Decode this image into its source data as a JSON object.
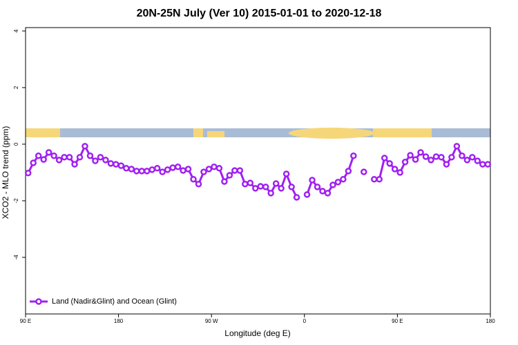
{
  "chart_data": {
    "type": "line",
    "title": "20N-25N July (Ver 10)   2015-01-01 to 2020-12-18",
    "xlabel": "Longitude (deg E)",
    "ylabel": "XCO2 - MLO trend (ppm)",
    "xlim": [
      90,
      540
    ],
    "xticks": [
      {
        "value": 90,
        "label": "90 E"
      },
      {
        "value": 180,
        "label": "180"
      },
      {
        "value": 270,
        "label": "90 W"
      },
      {
        "value": 360,
        "label": "0"
      },
      {
        "value": 450,
        "label": "90 E"
      },
      {
        "value": 540,
        "label": "180"
      }
    ],
    "ylim": [
      -6,
      4.12
    ],
    "yticks": [
      -4,
      -2,
      0,
      2,
      4
    ],
    "legend": "bottom-left",
    "x": [
      92.5,
      97.5,
      102.5,
      107.5,
      112.5,
      117.5,
      122.5,
      127.5,
      132.5,
      137.5,
      142.5,
      147.5,
      152.5,
      157.5,
      162.5,
      167.5,
      172.5,
      177.5,
      182.5,
      187.5,
      192.5,
      197.5,
      202.5,
      207.5,
      212.5,
      217.5,
      222.5,
      227.5,
      232.5,
      237.5,
      242.5,
      247.5,
      252.5,
      257.5,
      262.5,
      267.5,
      272.5,
      277.5,
      282.5,
      287.5,
      292.5,
      297.5,
      302.5,
      307.5,
      312.5,
      317.5,
      322.5,
      327.5,
      332.5,
      337.5,
      342.5,
      347.5,
      352.5,
      357.5,
      362.5,
      367.5,
      372.5,
      377.5,
      382.5,
      387.5,
      392.5,
      397.5,
      402.5,
      407.5,
      412.5,
      417.5,
      422.5,
      427.5,
      432.5,
      437.5,
      442.5,
      447.5,
      452.5,
      457.5,
      462.5,
      467.5,
      472.5,
      477.5,
      482.5,
      487.5,
      492.5,
      497.5,
      502.5,
      507.5,
      512.5,
      517.5,
      522.5,
      527.5,
      532.5,
      537.5
    ],
    "series": [
      {
        "name": "Land (Nadir&Glint) and Ocean (Glint)",
        "color": "#a020f0",
        "values": [
          -1.02,
          -0.66,
          -0.41,
          -0.54,
          -0.29,
          -0.41,
          -0.56,
          -0.46,
          -0.46,
          -0.71,
          -0.46,
          -0.07,
          -0.41,
          -0.59,
          -0.46,
          -0.56,
          -0.68,
          -0.71,
          -0.76,
          -0.85,
          -0.88,
          -0.95,
          -0.95,
          -0.95,
          -0.9,
          -0.85,
          -0.98,
          -0.9,
          -0.83,
          -0.8,
          -0.93,
          -0.88,
          -1.24,
          -1.41,
          -0.98,
          -0.88,
          -0.8,
          -0.85,
          -1.32,
          -1.1,
          -0.93,
          -0.93,
          -1.41,
          -1.37,
          -1.56,
          -1.49,
          -1.51,
          -1.73,
          -1.39,
          -1.56,
          -1.05,
          -1.51,
          -1.88,
          null,
          -1.78,
          -1.27,
          -1.51,
          -1.66,
          -1.73,
          -1.44,
          -1.34,
          -1.24,
          -0.95,
          -0.41,
          null,
          -0.98,
          null,
          -1.24,
          -1.24,
          -0.49,
          -0.68,
          -0.88,
          -1.0,
          -0.63,
          -0.39,
          -0.54,
          -0.29,
          -0.44,
          -0.56,
          -0.44,
          -0.46,
          -0.71,
          -0.46,
          -0.07,
          -0.41,
          -0.56,
          -0.46,
          -0.59,
          -0.71,
          -0.71
        ]
      }
    ]
  }
}
